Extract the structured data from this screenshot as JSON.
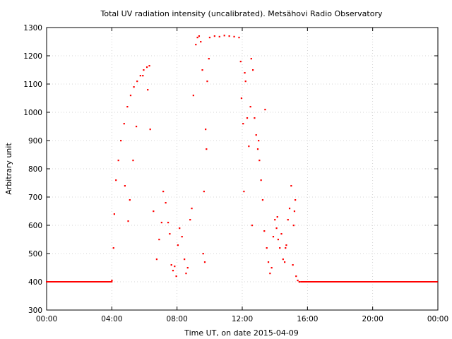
{
  "chart_data": {
    "type": "scatter",
    "title": "Total UV radiation intensity (uncalibrated). Metsähovi Radio Observatory",
    "xlabel": "Time UT, on date 2015-04-09",
    "ylabel": "Arbitrary unit",
    "xlim": [
      0,
      24
    ],
    "ylim": [
      300,
      1300
    ],
    "x_ticks": [
      "00:00",
      "04:00",
      "08:00",
      "12:00",
      "16:00",
      "20:00",
      "00:00"
    ],
    "x_tick_values": [
      0,
      4,
      8,
      12,
      16,
      20,
      24
    ],
    "y_ticks": [
      300,
      400,
      500,
      600,
      700,
      800,
      900,
      1000,
      1100,
      1200,
      1300
    ],
    "grid": true,
    "marker_color": "#ff0000",
    "points_x": [
      4.0,
      4.1,
      4.15,
      4.25,
      4.4,
      4.55,
      4.75,
      4.95,
      5.15,
      5.35,
      5.55,
      5.75,
      5.95,
      6.15,
      6.3,
      4.8,
      5.1,
      5.0,
      5.3,
      5.5,
      5.9,
      6.2,
      6.35,
      6.55,
      6.75,
      6.9,
      7.05,
      7.15,
      7.3,
      7.45,
      7.55,
      7.65,
      7.75,
      7.85,
      7.95,
      8.05,
      8.15,
      8.3,
      8.45,
      8.55,
      8.65,
      8.8,
      8.9,
      9.0,
      9.15,
      9.25,
      9.35,
      9.45,
      9.55,
      9.65,
      9.75,
      9.85,
      9.95,
      9.6,
      9.7,
      9.8,
      10.0,
      10.3,
      10.6,
      10.9,
      11.2,
      11.5,
      11.8,
      11.9,
      11.95,
      12.05,
      12.1,
      12.15,
      12.2,
      12.3,
      12.4,
      12.5,
      12.55,
      12.65,
      12.75,
      12.85,
      12.95,
      13.05,
      13.15,
      13.25,
      13.35,
      13.5,
      13.6,
      13.7,
      13.8,
      13.9,
      14.0,
      14.1,
      14.2,
      14.3,
      14.4,
      14.5,
      14.6,
      14.7,
      14.8,
      14.9,
      15.0,
      15.1,
      15.2,
      15.25,
      15.3,
      15.4,
      15.5,
      12.6,
      13.0,
      13.4,
      14.15,
      14.65,
      15.15
    ],
    "points_y": [
      405,
      520,
      640,
      760,
      830,
      900,
      960,
      1020,
      1060,
      1090,
      1110,
      1130,
      1150,
      1160,
      1165,
      740,
      690,
      615,
      830,
      950,
      1130,
      1080,
      940,
      650,
      480,
      550,
      610,
      720,
      680,
      610,
      570,
      460,
      440,
      455,
      420,
      530,
      590,
      560,
      480,
      430,
      450,
      620,
      660,
      1060,
      1240,
      1265,
      1270,
      1250,
      1150,
      720,
      940,
      1110,
      1190,
      500,
      470,
      870,
      1265,
      1270,
      1268,
      1272,
      1270,
      1268,
      1265,
      1180,
      1050,
      960,
      720,
      1140,
      1110,
      980,
      880,
      1020,
      1190,
      1150,
      980,
      920,
      870,
      830,
      760,
      690,
      580,
      520,
      470,
      430,
      450,
      560,
      620,
      590,
      550,
      520,
      570,
      480,
      470,
      530,
      620,
      660,
      740,
      460,
      650,
      690,
      420,
      405,
      400,
      600,
      900,
      1010,
      630,
      520,
      600
    ],
    "baseline_value": 400,
    "baseline_ranges": [
      [
        0,
        4.0
      ],
      [
        15.6,
        24
      ]
    ]
  }
}
